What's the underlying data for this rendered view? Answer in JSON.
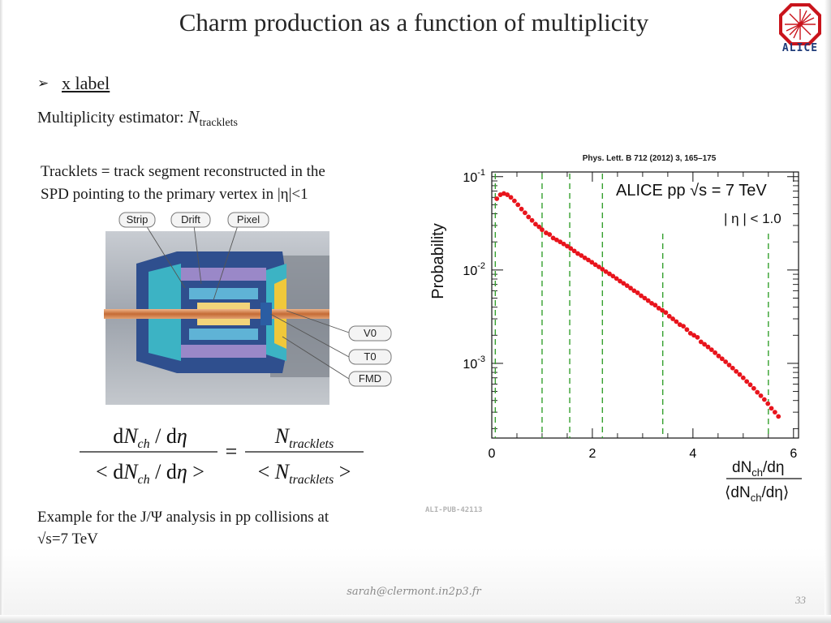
{
  "slide": {
    "title": "Charm production as a function of multiplicity",
    "logo_text": "ALICE",
    "bullet": {
      "marker": "➢",
      "text": "x label"
    },
    "estimator": {
      "prefix": "Multiplicity estimator: ",
      "symbol": "N",
      "subscript": "tracklets"
    },
    "tracklets_definition": {
      "line1": "Tracklets = track segment reconstructed in the",
      "line2": "SPD  pointing to the primary vertex in |η|<1"
    },
    "detector_labels": {
      "strip": "Strip",
      "drift": "Drift",
      "pixel": "Pixel",
      "v0": "V0",
      "t0": "T0",
      "fmd": "FMD"
    },
    "formula": {
      "num_left": "dN_ch / dη",
      "den_left": "< dN_ch / dη >",
      "equals": "=",
      "num_right": "N_tracklets",
      "den_right": "< N_tracklets >",
      "sub_ch": "ch",
      "sub_tracklets": "tracklets"
    },
    "example": {
      "line1": "Example for the J/Ψ analysis in pp collisions at",
      "line2": "√s=7 TeV"
    },
    "footer": {
      "email": "sarah@clermont.in2p3.fr",
      "page": "33"
    }
  },
  "colors": {
    "marker": "#e8141c",
    "dashed_line": "#35a02e",
    "accent_blue": "#1f3c7a"
  },
  "chart_data": {
    "type": "scatter",
    "reference": "Phys. Lett. B 712 (2012) 3, 165–175",
    "title": "ALICE  pp  √s = 7 TeV",
    "annotation": "| η | < 1.0",
    "ylabel": "Probability",
    "xlabel_num": "dN",
    "xlabel_num_sub": "ch",
    "xlabel_num_rest": "/dη",
    "xlabel_den": "⟨dN",
    "xlabel_den_sub": "ch",
    "xlabel_den_rest": "/dη⟩",
    "x_ticks": [
      "0",
      "2",
      "4",
      "6"
    ],
    "y_ticks": [
      {
        "base": "10",
        "exp": "-1"
      },
      {
        "base": "10",
        "exp": "-2"
      },
      {
        "base": "10",
        "exp": "-3"
      }
    ],
    "xlim": [
      0,
      6.1
    ],
    "ylim_log10": [
      -3.8,
      -0.95
    ],
    "y_scale": "log",
    "grid": false,
    "dashed_vertical_lines_x": [
      0.07,
      1.0,
      1.55,
      2.2,
      3.4,
      5.5
    ],
    "points": [
      [
        0.1,
        0.058
      ],
      [
        0.17,
        0.064
      ],
      [
        0.24,
        0.066
      ],
      [
        0.31,
        0.064
      ],
      [
        0.38,
        0.06
      ],
      [
        0.45,
        0.055
      ],
      [
        0.52,
        0.05
      ],
      [
        0.59,
        0.045
      ],
      [
        0.66,
        0.041
      ],
      [
        0.73,
        0.037
      ],
      [
        0.8,
        0.034
      ],
      [
        0.87,
        0.031
      ],
      [
        0.94,
        0.029
      ],
      [
        1.0,
        0.027
      ],
      [
        1.08,
        0.025
      ],
      [
        1.15,
        0.024
      ],
      [
        1.22,
        0.022
      ],
      [
        1.29,
        0.021
      ],
      [
        1.36,
        0.02
      ],
      [
        1.43,
        0.019
      ],
      [
        1.5,
        0.018
      ],
      [
        1.57,
        0.017
      ],
      [
        1.64,
        0.016
      ],
      [
        1.71,
        0.015
      ],
      [
        1.78,
        0.0143
      ],
      [
        1.85,
        0.0135
      ],
      [
        1.92,
        0.0128
      ],
      [
        1.99,
        0.0121
      ],
      [
        2.06,
        0.0114
      ],
      [
        2.13,
        0.0108
      ],
      [
        2.2,
        0.0102
      ],
      [
        2.27,
        0.0096
      ],
      [
        2.34,
        0.0091
      ],
      [
        2.41,
        0.0086
      ],
      [
        2.48,
        0.0081
      ],
      [
        2.55,
        0.0076
      ],
      [
        2.62,
        0.0072
      ],
      [
        2.69,
        0.0068
      ],
      [
        2.76,
        0.0064
      ],
      [
        2.83,
        0.006
      ],
      [
        2.9,
        0.0057
      ],
      [
        2.97,
        0.0053
      ],
      [
        3.04,
        0.005
      ],
      [
        3.11,
        0.0047
      ],
      [
        3.18,
        0.0044
      ],
      [
        3.25,
        0.0042
      ],
      [
        3.32,
        0.0039
      ],
      [
        3.39,
        0.0037
      ],
      [
        3.46,
        0.0035
      ],
      [
        3.53,
        0.0032
      ],
      [
        3.6,
        0.003
      ],
      [
        3.67,
        0.0028
      ],
      [
        3.74,
        0.0026
      ],
      [
        3.81,
        0.0025
      ],
      [
        3.88,
        0.0023
      ],
      [
        3.95,
        0.0021
      ],
      [
        4.02,
        0.002
      ],
      [
        4.09,
        0.0019
      ],
      [
        4.16,
        0.0017
      ],
      [
        4.23,
        0.0016
      ],
      [
        4.3,
        0.0015
      ],
      [
        4.37,
        0.0014
      ],
      [
        4.44,
        0.0013
      ],
      [
        4.51,
        0.0012
      ],
      [
        4.58,
        0.00112
      ],
      [
        4.65,
        0.00104
      ],
      [
        4.72,
        0.00096
      ],
      [
        4.79,
        0.00089
      ],
      [
        4.86,
        0.00082
      ],
      [
        4.93,
        0.00076
      ],
      [
        5.0,
        0.0007
      ],
      [
        5.07,
        0.00064
      ],
      [
        5.14,
        0.00059
      ],
      [
        5.21,
        0.00054
      ],
      [
        5.28,
        0.00049
      ],
      [
        5.35,
        0.00045
      ],
      [
        5.42,
        0.00041
      ],
      [
        5.49,
        0.00037
      ],
      [
        5.56,
        0.00033
      ],
      [
        5.63,
        0.0003
      ],
      [
        5.7,
        0.00027
      ]
    ],
    "footnote": "ALI-PUB-42113"
  }
}
